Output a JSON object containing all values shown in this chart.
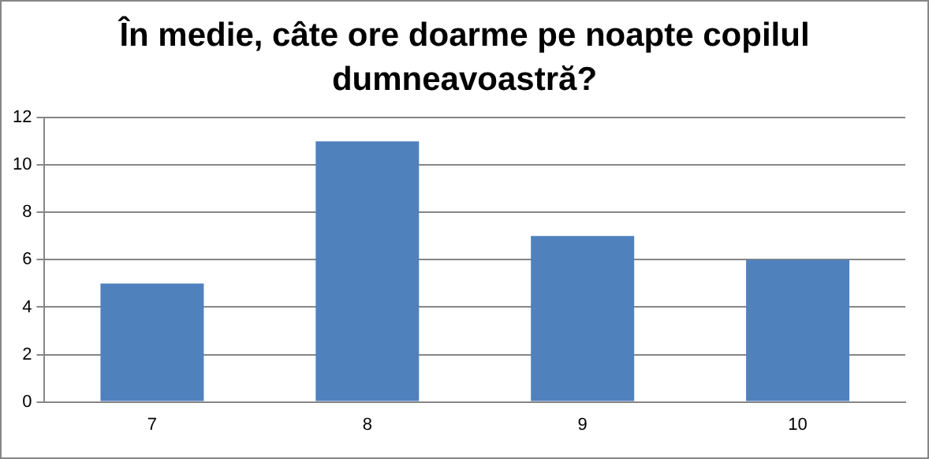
{
  "chart_data": {
    "type": "bar",
    "title": "În medie, câte ore doarme pe noapte copilul dumneavoastră?",
    "categories": [
      "7",
      "8",
      "9",
      "10"
    ],
    "values": [
      5,
      11,
      7,
      6
    ],
    "color": "#4f81bd",
    "ylim": [
      0,
      12
    ],
    "yticks": [
      0,
      2,
      4,
      6,
      8,
      10,
      12
    ],
    "grid": "y",
    "legend": false
  }
}
